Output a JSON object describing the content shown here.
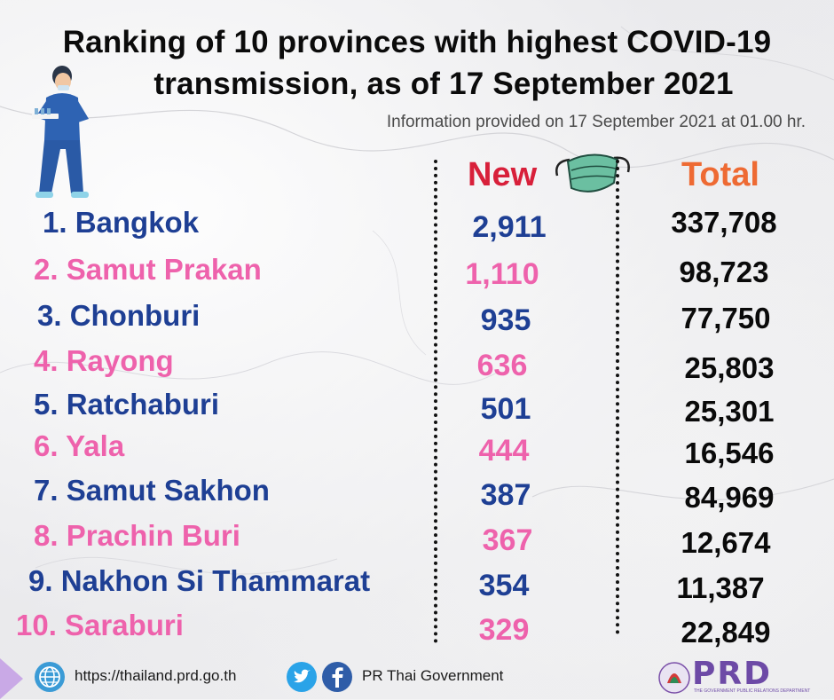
{
  "header": {
    "title_line1": "Ranking of 10 provinces with highest COVID-19",
    "title_line2": "transmission, as of 17 September 2021",
    "info": "Information provided on 17 September 2021 at 01.00 hr."
  },
  "columns": {
    "new": "New",
    "total": "Total"
  },
  "chart_data": {
    "type": "table",
    "title": "Ranking of 10 provinces with highest COVID-19 transmission, as of 17 September 2021",
    "columns": [
      "New",
      "Total"
    ],
    "rows": [
      {
        "rank": "1.",
        "province": "Bangkok",
        "new": "2,911",
        "total": "337,708"
      },
      {
        "rank": "2.",
        "province": "Samut Prakan",
        "new": "1,110",
        "total": "98,723"
      },
      {
        "rank": "3.",
        "province": "Chonburi",
        "new": "935",
        "total": "77,750"
      },
      {
        "rank": "4.",
        "province": "Rayong",
        "new": "636",
        "total": "25,803"
      },
      {
        "rank": "5.",
        "province": "Ratchaburi",
        "new": "501",
        "total": "25,301"
      },
      {
        "rank": "6.",
        "province": "Yala",
        "new": "444",
        "total": "16,546"
      },
      {
        "rank": "7.",
        "province": "Samut Sakhon",
        "new": "387",
        "total": "84,969"
      },
      {
        "rank": "8.",
        "province": "Prachin Buri",
        "new": "367",
        "total": "12,674"
      },
      {
        "rank": "9.",
        "province": "Nakhon Si Thammarat",
        "new": "354",
        "total": "11,387"
      },
      {
        "rank": "10.",
        "province": "Saraburi",
        "new": "329",
        "total": "22,849"
      }
    ],
    "row_colors": [
      "#1e3f94",
      "#ee62ac"
    ]
  },
  "footer": {
    "website": "https://thailand.prd.go.th",
    "social": "PR Thai Government",
    "logo_text": "PRD",
    "logo_tagline": "THE GOVERNMENT PUBLIC RELATIONS DEPARTMENT"
  },
  "icons": [
    "nurse-illustration",
    "face-mask-icon",
    "globe-icon",
    "twitter-icon",
    "facebook-icon",
    "prd-logo"
  ]
}
